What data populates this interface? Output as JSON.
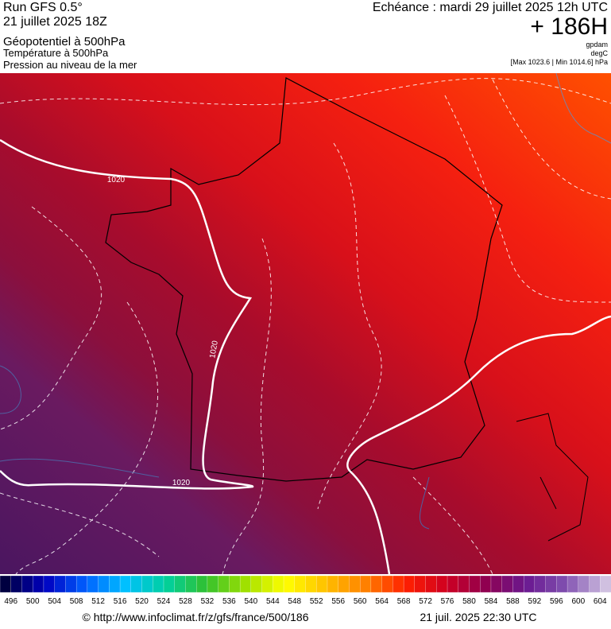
{
  "header": {
    "run": "Run GFS 0.5°",
    "date": "21 juillet 2025 18Z",
    "field1": "Géopotentiel à 500hPa",
    "field2": "Température à 500hPa",
    "field3": "Pression au niveau de la mer",
    "valid": "Echéance : mardi 29 juillet 2025 12h UTC",
    "lead": "+ 186H",
    "unit1": "gpdam",
    "unit2": "degC",
    "range": "[Max 1023.6 | Min 1014.6] hPa"
  },
  "map": {
    "isobar_labels": [
      "1020",
      "1020",
      "1020"
    ]
  },
  "legend": {
    "labels": [
      496,
      500,
      504,
      508,
      512,
      516,
      520,
      524,
      528,
      532,
      536,
      540,
      544,
      548,
      552,
      556,
      560,
      564,
      568,
      572,
      576,
      580,
      584,
      588,
      592,
      596,
      600,
      604
    ],
    "colors": [
      "#000040",
      "#0000c0",
      "#0060ff",
      "#00c0ff",
      "#00d0a0",
      "#30c030",
      "#a0e000",
      "#ffff00",
      "#ffc000",
      "#ff8000",
      "#ff2000",
      "#d00020",
      "#900050",
      "#6a1890",
      "#8050b0",
      "#d0c0e0"
    ]
  },
  "footer": {
    "url": "© http://www.infoclimat.fr/z/gfs/france/500/186",
    "timestamp": "21 juil. 2025 22:30 UTC"
  }
}
